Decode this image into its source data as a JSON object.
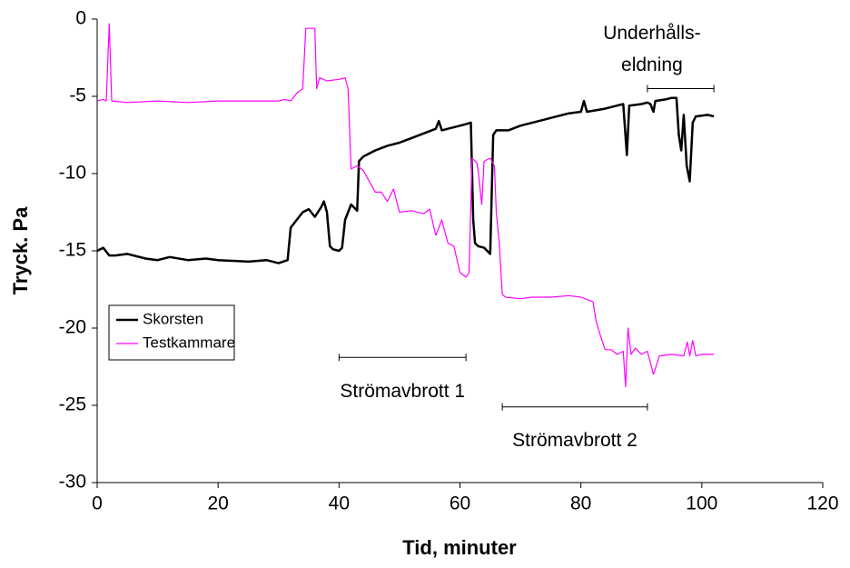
{
  "chart_data": {
    "type": "line",
    "xlabel": "Tid, minuter",
    "ylabel": "Tryck. Pa",
    "xlim": [
      0,
      120
    ],
    "xticks": [
      0,
      20,
      40,
      60,
      80,
      100,
      120
    ],
    "ylim": [
      -30,
      0
    ],
    "yticks": [
      -30,
      -25,
      -20,
      -15,
      -10,
      -5,
      0
    ],
    "grid": false,
    "series": [
      {
        "name": "Skorsten",
        "color": "#000000",
        "x": [
          0,
          1,
          2,
          3,
          5,
          8,
          10,
          12,
          15,
          18,
          20,
          25,
          28,
          30,
          31.5,
          32,
          33,
          34,
          35,
          36,
          37,
          37.5,
          38,
          38.5,
          39,
          40,
          40.5,
          41,
          42,
          42.5,
          43,
          43.3,
          44,
          45,
          46,
          48,
          50,
          52,
          54,
          56,
          56.5,
          57,
          58,
          60,
          61,
          61.8,
          62.2,
          62.5,
          63,
          64,
          65,
          65.5,
          66,
          68,
          70,
          72,
          75,
          78,
          80,
          80.5,
          81,
          84,
          86,
          87,
          87.6,
          88,
          90,
          91,
          91.5,
          92,
          92.3,
          94,
          95,
          95.8,
          96.2,
          96.6,
          97,
          97.5,
          98,
          98.5,
          99,
          101,
          102
        ],
        "values": [
          -15,
          -14.8,
          -15.3,
          -15.3,
          -15.2,
          -15.5,
          -15.6,
          -15.4,
          -15.6,
          -15.5,
          -15.6,
          -15.7,
          -15.6,
          -15.8,
          -15.6,
          -13.5,
          -13,
          -12.5,
          -12.3,
          -12.8,
          -12.2,
          -11.8,
          -12.5,
          -14.7,
          -14.9,
          -15,
          -14.8,
          -13,
          -12,
          -12.2,
          -12.4,
          -9.2,
          -8.9,
          -8.7,
          -8.5,
          -8.2,
          -8,
          -7.7,
          -7.4,
          -7.1,
          -6.6,
          -7.2,
          -7.1,
          -6.9,
          -6.8,
          -6.7,
          -13,
          -14.5,
          -14.7,
          -14.8,
          -15.2,
          -7.5,
          -7.2,
          -7.2,
          -6.9,
          -6.7,
          -6.4,
          -6.1,
          -6,
          -5.3,
          -6,
          -5.8,
          -5.6,
          -5.5,
          -8.8,
          -5.6,
          -5.5,
          -5.4,
          -5.5,
          -6,
          -5.3,
          -5.2,
          -5.1,
          -5.1,
          -7.5,
          -8.5,
          -6.2,
          -9.5,
          -10.5,
          -6.7,
          -6.3,
          -6.2,
          -6.3
        ]
      },
      {
        "name": "Testkammare",
        "color": "#ff00ff",
        "x": [
          0,
          1,
          1.5,
          2,
          2.4,
          5,
          10,
          15,
          20,
          25,
          30,
          31,
          32,
          33,
          34,
          34.5,
          36,
          36.3,
          36.8,
          38,
          40,
          41,
          41.5,
          42,
          43,
          44,
          45,
          46,
          47,
          48,
          49,
          50,
          52,
          54,
          55,
          56,
          57,
          58,
          59,
          60,
          61,
          61.5,
          62,
          62.8,
          63,
          63.6,
          64,
          65,
          65.7,
          66,
          66.5,
          67,
          67.5,
          70,
          72,
          75,
          78,
          80,
          82,
          82.5,
          83,
          84,
          85,
          86,
          87,
          87.4,
          87.8,
          88.3,
          89,
          90,
          91,
          92,
          93,
          95,
          97,
          97.6,
          98,
          98.5,
          99,
          100,
          102
        ],
        "values": [
          -5.3,
          -5.2,
          -5.3,
          -0.3,
          -5.3,
          -5.4,
          -5.3,
          -5.4,
          -5.3,
          -5.3,
          -5.3,
          -5.2,
          -5.3,
          -4.8,
          -4.5,
          -0.6,
          -0.6,
          -4.5,
          -3.8,
          -4,
          -3.9,
          -3.8,
          -4.5,
          -9.7,
          -9.5,
          -9.8,
          -10.5,
          -11.2,
          -11.2,
          -11.8,
          -11,
          -12.5,
          -12.4,
          -12.6,
          -12.3,
          -14,
          -13,
          -14.5,
          -14.7,
          -16.4,
          -16.7,
          -16.4,
          -9,
          -9.3,
          -9.8,
          -12,
          -9.2,
          -9,
          -9.5,
          -12.5,
          -14.5,
          -17.8,
          -18,
          -18.1,
          -18,
          -18,
          -17.9,
          -18,
          -18.3,
          -19.5,
          -20.2,
          -21.4,
          -21.4,
          -21.7,
          -21.5,
          -23.8,
          -20,
          -21.7,
          -21.3,
          -21.7,
          -21.5,
          -23,
          -21.8,
          -21.7,
          -21.8,
          -20.9,
          -21.8,
          -20.8,
          -21.8,
          -21.7,
          -21.7
        ]
      }
    ],
    "annotations": [
      {
        "text": [
          "Strömavbrott 1"
        ],
        "x_range": [
          40,
          61
        ],
        "y": -21.9
      },
      {
        "text": [
          "Strömavbrott 2"
        ],
        "x_range": [
          67,
          91
        ],
        "y": -25.1
      },
      {
        "text": [
          "Underhålls-",
          "eldning"
        ],
        "x_range": [
          91,
          102
        ],
        "y": -4.5
      }
    ]
  }
}
